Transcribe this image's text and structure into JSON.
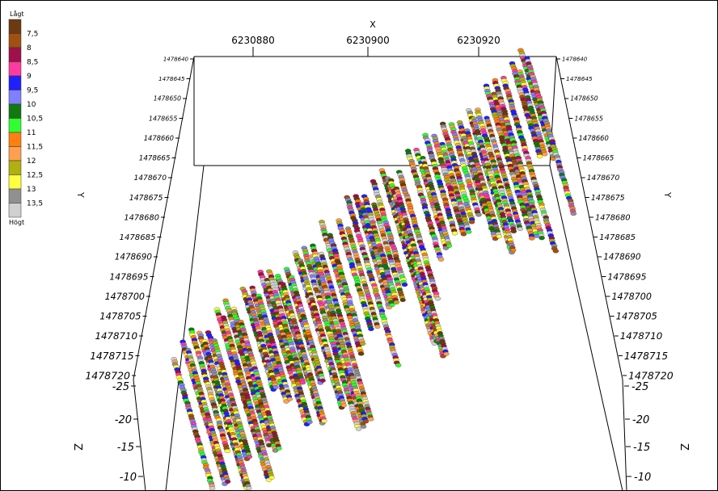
{
  "chart_data": {
    "type": "scatter",
    "title": "",
    "x_axis": {
      "label": "X",
      "ticks": [
        "6230880",
        "6230900",
        "6230920"
      ]
    },
    "y_axis": {
      "label": "Y",
      "ticks": [
        "1478640",
        "1478645",
        "1478650",
        "1478655",
        "1478660",
        "1478665",
        "1478670",
        "1478675",
        "1478680",
        "1478685",
        "1478690",
        "1478695",
        "1478700",
        "1478705",
        "1478710",
        "1478715",
        "1478720"
      ]
    },
    "z_axis": {
      "label": "Z",
      "ticks": [
        "-25",
        "-20",
        "-15",
        "-10"
      ]
    },
    "legend": {
      "placement": "left",
      "top_label": "Lågt",
      "bottom_label": "Högt",
      "items": [
        {
          "label": "7,5",
          "color": "#6b3a10"
        },
        {
          "label": "8",
          "color": "#a05010"
        },
        {
          "label": "8,5",
          "color": "#a0104a"
        },
        {
          "label": "9",
          "color": "#ff3aa0"
        },
        {
          "label": "9,5",
          "color": "#2020ff"
        },
        {
          "label": "10",
          "color": "#8080ff"
        },
        {
          "label": "10,5",
          "color": "#107a10"
        },
        {
          "label": "11",
          "color": "#30ff30"
        },
        {
          "label": "11,5",
          "color": "#ff8010"
        },
        {
          "label": "12",
          "color": "#ffa050"
        },
        {
          "label": "12,5",
          "color": "#b0b010"
        },
        {
          "label": "13",
          "color": "#ffff40"
        },
        {
          "label": "13,5",
          "color": "#909090"
        },
        {
          "label": "",
          "color": "#d0d0d0"
        }
      ]
    },
    "series_description": "Vertical drillhole columns of colored sample points"
  }
}
